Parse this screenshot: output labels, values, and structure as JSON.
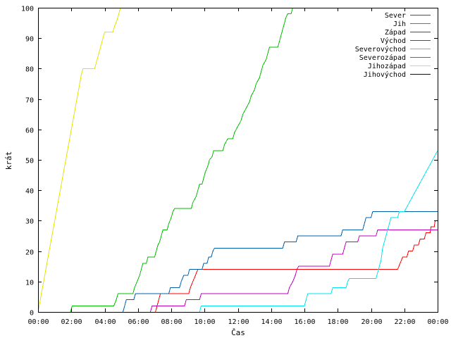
{
  "chart_data": {
    "type": "line",
    "title": "",
    "xlabel": "Čas",
    "ylabel": "krát",
    "xlim": [
      0,
      24
    ],
    "ylim": [
      0,
      100
    ],
    "grid": false,
    "legend_position": "top-right",
    "x_ticks": [
      {
        "value": 0,
        "label": "00:00"
      },
      {
        "value": 2,
        "label": "02:00"
      },
      {
        "value": 4,
        "label": "04:00"
      },
      {
        "value": 6,
        "label": "06:00"
      },
      {
        "value": 8,
        "label": "08:00"
      },
      {
        "value": 10,
        "label": "10:00"
      },
      {
        "value": 12,
        "label": "12:00"
      },
      {
        "value": 14,
        "label": "14:00"
      },
      {
        "value": 16,
        "label": "16:00"
      },
      {
        "value": 18,
        "label": "18:00"
      },
      {
        "value": 20,
        "label": "20:00"
      },
      {
        "value": 22,
        "label": "22:00"
      },
      {
        "value": 24,
        "label": "00:00"
      }
    ],
    "y_ticks": [
      0,
      10,
      20,
      30,
      40,
      50,
      60,
      70,
      80,
      90,
      100
    ],
    "series": [
      {
        "name": "Sever",
        "color": "#ff0000",
        "points": [
          [
            7.05,
            0
          ],
          [
            7.15,
            2
          ],
          [
            7.25,
            4
          ],
          [
            7.35,
            6
          ],
          [
            9.05,
            6
          ],
          [
            9.15,
            8
          ],
          [
            9.3,
            10
          ],
          [
            9.45,
            12
          ],
          [
            9.6,
            14
          ],
          [
            21.6,
            14
          ],
          [
            21.75,
            16
          ],
          [
            21.9,
            18
          ],
          [
            22.15,
            18
          ],
          [
            22.25,
            20
          ],
          [
            22.5,
            20
          ],
          [
            22.6,
            22
          ],
          [
            22.85,
            22
          ],
          [
            22.95,
            24
          ],
          [
            23.2,
            24
          ],
          [
            23.3,
            26
          ],
          [
            23.55,
            26
          ],
          [
            23.6,
            28
          ],
          [
            23.8,
            28
          ],
          [
            23.85,
            30
          ]
        ]
      },
      {
        "name": "Jih",
        "color": "#00c000",
        "points": [
          [
            1.95,
            0
          ],
          [
            2.05,
            2
          ],
          [
            4.55,
            2
          ],
          [
            4.7,
            4
          ],
          [
            4.8,
            6
          ],
          [
            5.7,
            6
          ],
          [
            5.8,
            8
          ],
          [
            5.95,
            10
          ],
          [
            6.1,
            12
          ],
          [
            6.2,
            14
          ],
          [
            6.3,
            16
          ],
          [
            6.5,
            16
          ],
          [
            6.6,
            18
          ],
          [
            7.0,
            18
          ],
          [
            7.1,
            20
          ],
          [
            7.2,
            22
          ],
          [
            7.3,
            23
          ],
          [
            7.4,
            25
          ],
          [
            7.5,
            27
          ],
          [
            7.75,
            27
          ],
          [
            7.85,
            29
          ],
          [
            8.0,
            31
          ],
          [
            8.1,
            33
          ],
          [
            8.2,
            34
          ],
          [
            9.2,
            34
          ],
          [
            9.3,
            36
          ],
          [
            9.5,
            38
          ],
          [
            9.6,
            40
          ],
          [
            9.7,
            42
          ],
          [
            9.85,
            42
          ],
          [
            9.95,
            44
          ],
          [
            10.05,
            46
          ],
          [
            10.2,
            48
          ],
          [
            10.3,
            50
          ],
          [
            10.45,
            51
          ],
          [
            10.55,
            53
          ],
          [
            11.1,
            53
          ],
          [
            11.2,
            55
          ],
          [
            11.4,
            57
          ],
          [
            11.7,
            57
          ],
          [
            11.8,
            59
          ],
          [
            12.0,
            61
          ],
          [
            12.2,
            63
          ],
          [
            12.3,
            65
          ],
          [
            12.5,
            67
          ],
          [
            12.7,
            69
          ],
          [
            12.8,
            71
          ],
          [
            13.0,
            73
          ],
          [
            13.1,
            75
          ],
          [
            13.3,
            77
          ],
          [
            13.4,
            79
          ],
          [
            13.5,
            81
          ],
          [
            13.7,
            83
          ],
          [
            13.8,
            85
          ],
          [
            13.9,
            87
          ],
          [
            14.4,
            87
          ],
          [
            14.5,
            89
          ],
          [
            14.6,
            91
          ],
          [
            14.7,
            93
          ],
          [
            14.8,
            95
          ],
          [
            14.9,
            97
          ],
          [
            15.0,
            98
          ],
          [
            15.2,
            98
          ],
          [
            15.3,
            100
          ],
          [
            15.35,
            101
          ]
        ]
      },
      {
        "name": "Západ",
        "color": "#0060ad",
        "points": [
          [
            5.1,
            0
          ],
          [
            5.2,
            2
          ],
          [
            5.3,
            4
          ],
          [
            5.75,
            4
          ],
          [
            5.85,
            6
          ],
          [
            7.85,
            6
          ],
          [
            7.95,
            8
          ],
          [
            8.5,
            8
          ],
          [
            8.6,
            10
          ],
          [
            8.75,
            12
          ],
          [
            9.0,
            12
          ],
          [
            9.1,
            14
          ],
          [
            9.85,
            14
          ],
          [
            9.95,
            16
          ],
          [
            10.15,
            16
          ],
          [
            10.25,
            18
          ],
          [
            10.4,
            18
          ],
          [
            10.5,
            20
          ],
          [
            10.6,
            21
          ],
          [
            14.7,
            21
          ],
          [
            14.8,
            23
          ],
          [
            15.5,
            23
          ],
          [
            15.6,
            25
          ],
          [
            18.2,
            25
          ],
          [
            18.3,
            27
          ],
          [
            19.5,
            27
          ],
          [
            19.6,
            29
          ],
          [
            19.7,
            31
          ],
          [
            20.0,
            31
          ],
          [
            20.1,
            33
          ],
          [
            24.0,
            33
          ]
        ]
      },
      {
        "name": "Východ",
        "color": "#c000c0",
        "points": [
          [
            6.75,
            0
          ],
          [
            6.85,
            2
          ],
          [
            8.8,
            2
          ],
          [
            8.9,
            4
          ],
          [
            9.7,
            4
          ],
          [
            9.8,
            6
          ],
          [
            15.0,
            6
          ],
          [
            15.1,
            8
          ],
          [
            15.3,
            10
          ],
          [
            15.45,
            12
          ],
          [
            15.55,
            14
          ],
          [
            15.65,
            15
          ],
          [
            17.5,
            15
          ],
          [
            17.6,
            17
          ],
          [
            17.7,
            19
          ],
          [
            18.3,
            19
          ],
          [
            18.4,
            21
          ],
          [
            18.5,
            23
          ],
          [
            19.2,
            23
          ],
          [
            19.3,
            25
          ],
          [
            20.3,
            25
          ],
          [
            20.4,
            27
          ],
          [
            24.0,
            27
          ]
        ]
      },
      {
        "name": "Severovýchod",
        "color": "#00e5ee",
        "points": [
          [
            9.7,
            0
          ],
          [
            9.8,
            2
          ],
          [
            16.0,
            2
          ],
          [
            16.1,
            4
          ],
          [
            16.2,
            6
          ],
          [
            17.6,
            6
          ],
          [
            17.7,
            8
          ],
          [
            18.5,
            8
          ],
          [
            18.6,
            10
          ],
          [
            18.7,
            11
          ],
          [
            20.3,
            11
          ],
          [
            20.4,
            13
          ],
          [
            20.5,
            15
          ],
          [
            20.6,
            17
          ],
          [
            20.65,
            19
          ],
          [
            20.7,
            21
          ],
          [
            20.8,
            23
          ],
          [
            20.9,
            25
          ],
          [
            21.0,
            27
          ],
          [
            21.1,
            29
          ],
          [
            21.2,
            31
          ],
          [
            21.6,
            31
          ],
          [
            21.7,
            33
          ],
          [
            22.0,
            33
          ],
          [
            22.2,
            35
          ],
          [
            22.4,
            37
          ],
          [
            22.6,
            39
          ],
          [
            22.8,
            41
          ],
          [
            23.0,
            43
          ],
          [
            23.2,
            45
          ],
          [
            23.4,
            47
          ],
          [
            23.6,
            49
          ],
          [
            23.8,
            51
          ],
          [
            24.0,
            53
          ]
        ]
      },
      {
        "name": "Severozápad",
        "color": "#e04000",
        "points": []
      },
      {
        "name": "Jihozápad",
        "color": "#e5e500",
        "points": [
          [
            0.0,
            0
          ],
          [
            0.1,
            3
          ],
          [
            0.2,
            6
          ],
          [
            0.3,
            9
          ],
          [
            0.4,
            12
          ],
          [
            0.5,
            15
          ],
          [
            0.6,
            18
          ],
          [
            0.7,
            21
          ],
          [
            0.8,
            24
          ],
          [
            0.9,
            27
          ],
          [
            1.0,
            30
          ],
          [
            1.1,
            33
          ],
          [
            1.2,
            36
          ],
          [
            1.3,
            39
          ],
          [
            1.4,
            42
          ],
          [
            1.5,
            45
          ],
          [
            1.6,
            48
          ],
          [
            1.7,
            51
          ],
          [
            1.8,
            54
          ],
          [
            1.9,
            57
          ],
          [
            2.0,
            60
          ],
          [
            2.1,
            63
          ],
          [
            2.2,
            66
          ],
          [
            2.3,
            69
          ],
          [
            2.4,
            72
          ],
          [
            2.5,
            75
          ],
          [
            2.6,
            78
          ],
          [
            2.7,
            80
          ],
          [
            3.4,
            80
          ],
          [
            3.5,
            82
          ],
          [
            3.6,
            84
          ],
          [
            3.7,
            86
          ],
          [
            3.8,
            88
          ],
          [
            3.9,
            90
          ],
          [
            4.0,
            92
          ],
          [
            4.5,
            92
          ],
          [
            4.6,
            94
          ],
          [
            4.75,
            96
          ],
          [
            4.85,
            98
          ],
          [
            4.95,
            100
          ],
          [
            5.0,
            101
          ]
        ]
      },
      {
        "name": "Jihovýchod",
        "color": "#000080",
        "points": []
      }
    ]
  }
}
